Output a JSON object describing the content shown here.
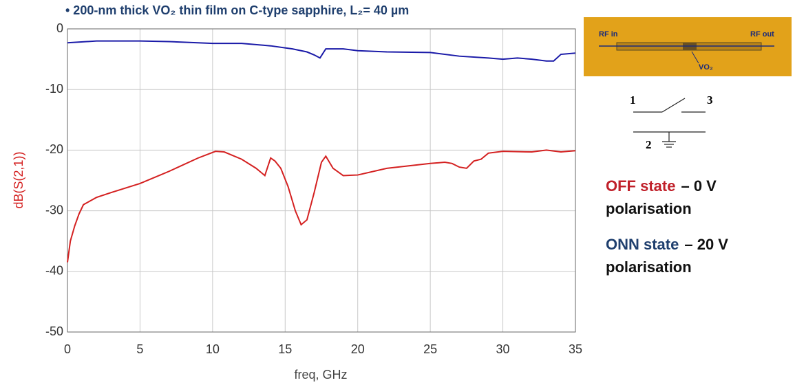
{
  "chart_data": {
    "type": "line",
    "title": "• 200-nm thick VO₂ thin film on C-type sapphire,  L₂= 40 µm",
    "x_label": "freq, GHz",
    "y_label": "dB(S(2,1))",
    "xlim": [
      0,
      35
    ],
    "xticks": [
      0,
      5,
      10,
      15,
      20,
      25,
      30,
      35
    ],
    "ylim": [
      -50,
      0
    ],
    "yticks": [
      0,
      -10,
      -20,
      -30,
      -40,
      -50
    ],
    "grid": true,
    "series": [
      {
        "name": "OFF state",
        "color": "#d42020",
        "x": [
          0,
          0.2,
          0.5,
          0.8,
          1.1,
          2,
          3,
          5,
          7,
          9,
          10.2,
          10.8,
          12,
          13,
          13.6,
          14,
          14.3,
          14.7,
          15.2,
          15.7,
          16.1,
          16.5,
          17,
          17.5,
          17.8,
          18.3,
          19,
          20,
          22,
          25,
          26,
          26.5,
          27,
          27.5,
          28,
          28.5,
          29,
          30,
          32,
          33,
          34,
          35
        ],
        "values": [
          -38.5,
          -35,
          -32.5,
          -30.5,
          -29,
          -27.8,
          -27,
          -25.5,
          -23.5,
          -21.3,
          -20.2,
          -20.3,
          -21.5,
          -23,
          -24.2,
          -21.3,
          -21.8,
          -23,
          -26,
          -30,
          -32.3,
          -31.5,
          -27,
          -22,
          -21,
          -23,
          -24.2,
          -24.1,
          -23,
          -22.2,
          -22,
          -22.2,
          -22.8,
          -23,
          -21.8,
          -21.5,
          -20.5,
          -20.2,
          -20.3,
          -20,
          -20.3,
          -20.1
        ]
      },
      {
        "name": "ONN state",
        "color": "#1a1aa8",
        "x": [
          0,
          2,
          5,
          7,
          10,
          12,
          14,
          15.5,
          16.5,
          17,
          17.4,
          17.8,
          19,
          20,
          22,
          25,
          27,
          29,
          30,
          31,
          32,
          33,
          33.5,
          34,
          35
        ],
        "values": [
          -2.3,
          -2.0,
          -2.0,
          -2.1,
          -2.4,
          -2.4,
          -2.8,
          -3.3,
          -3.8,
          -4.3,
          -4.8,
          -3.3,
          -3.3,
          -3.6,
          -3.8,
          -3.9,
          -4.5,
          -4.8,
          -5.0,
          -4.8,
          -5.0,
          -5.3,
          -5.3,
          -4.2,
          -4.0
        ]
      }
    ]
  },
  "inset": {
    "rf_in": "RF in",
    "rf_out": "RF out",
    "vo2": "VO₂"
  },
  "switch": {
    "port1": "1",
    "port3": "3",
    "port2": "2"
  },
  "legend_notes": [
    {
      "text": "– 0 V",
      "line2": "polarisation"
    },
    {
      "text": "– 20 V",
      "line2": "polarisation"
    }
  ]
}
